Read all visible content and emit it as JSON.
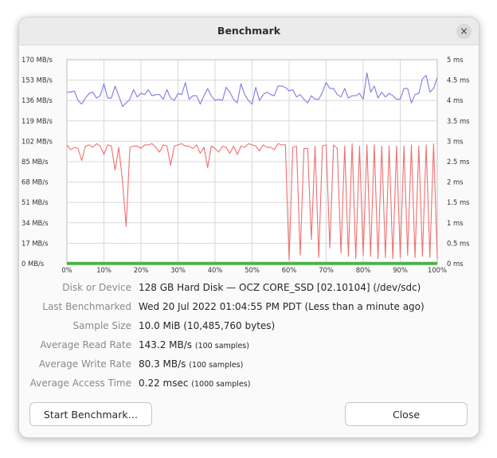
{
  "window": {
    "title": "Benchmark",
    "close_glyph": "×"
  },
  "chart_data": {
    "type": "line",
    "left_axis": {
      "unit": "MB/s",
      "ticks": [
        "170 MB/s",
        "153 MB/s",
        "136 MB/s",
        "119 MB/s",
        "102 MB/s",
        "85 MB/s",
        "68 MB/s",
        "51 MB/s",
        "34 MB/s",
        "17 MB/s",
        "0 MB/s"
      ],
      "range": [
        0,
        170
      ]
    },
    "right_axis": {
      "unit": "ms",
      "ticks": [
        "5 ms",
        "4.5 ms",
        "4 ms",
        "3.5 ms",
        "3 ms",
        "2.5 ms",
        "2 ms",
        "1.5 ms",
        "1 ms",
        "0.5 ms",
        "0 ms"
      ],
      "range": [
        0,
        5
      ]
    },
    "x_axis": {
      "ticks": [
        "0%",
        "10%",
        "20%",
        "30%",
        "40%",
        "50%",
        "60%",
        "70%",
        "80%",
        "90%",
        "100%"
      ],
      "range": [
        0,
        100
      ]
    },
    "grid": true,
    "series": [
      {
        "color": "#7b7bea",
        "x": [
          0,
          1,
          2,
          3,
          4,
          5,
          6,
          7,
          8,
          9,
          10,
          11,
          12,
          13,
          14,
          15,
          16,
          17,
          18,
          19,
          20,
          21,
          22,
          23,
          24,
          25,
          26,
          27,
          28,
          29,
          30,
          31,
          32,
          33,
          34,
          35,
          36,
          37,
          38,
          39,
          40,
          41,
          42,
          43,
          44,
          45,
          46,
          47,
          48,
          49,
          50,
          51,
          52,
          53,
          54,
          55,
          56,
          57,
          58,
          59,
          60,
          61,
          62,
          63,
          64,
          65,
          66,
          67,
          68,
          69,
          70,
          71,
          72,
          73,
          74,
          75,
          76,
          77,
          78,
          79,
          80,
          81,
          82,
          83,
          84,
          85,
          86,
          87,
          88,
          89,
          90,
          91,
          92,
          93,
          94,
          95,
          96,
          97,
          98,
          99,
          100
        ],
        "y": [
          143,
          143,
          144,
          136,
          133,
          138,
          142,
          143,
          138,
          140,
          150,
          138,
          138,
          148,
          140,
          131,
          134,
          137,
          145,
          139,
          142,
          141,
          145,
          140,
          141,
          141,
          137,
          145,
          138,
          136,
          142,
          141,
          151,
          137,
          140,
          140,
          133,
          140,
          146,
          140,
          136,
          137,
          136,
          147,
          143,
          137,
          134,
          150,
          141,
          136,
          133,
          147,
          136,
          141,
          143,
          141,
          140,
          148,
          148,
          147,
          144,
          145,
          139,
          141,
          137,
          134,
          140,
          137,
          137,
          143,
          151,
          146,
          146,
          141,
          139,
          146,
          138,
          140,
          140,
          142,
          137,
          159,
          143,
          148,
          138,
          143,
          139,
          142,
          140,
          137,
          137,
          146,
          146,
          134,
          141,
          142,
          154,
          157,
          143,
          146,
          155
        ]
      },
      {
        "color": "#f06f6f",
        "x": [
          0,
          1,
          2,
          3,
          4,
          5,
          6,
          7,
          8,
          9,
          10,
          11,
          12,
          13,
          14,
          15,
          16,
          17,
          18,
          19,
          20,
          21,
          22,
          23,
          24,
          25,
          26,
          27,
          28,
          29,
          30,
          31,
          32,
          33,
          34,
          35,
          36,
          37,
          38,
          39,
          40,
          41,
          42,
          43,
          44,
          45,
          46,
          47,
          48,
          49,
          50,
          51,
          52,
          53,
          54,
          55,
          56,
          57,
          58,
          59,
          60,
          61,
          62,
          63,
          64,
          65,
          66,
          67,
          68,
          69,
          70,
          71,
          72,
          73,
          74,
          75,
          76,
          77,
          78,
          79,
          80,
          81,
          82,
          83,
          84,
          85,
          86,
          87,
          88,
          89,
          90,
          91,
          92,
          93,
          94,
          95,
          96,
          97,
          98,
          99,
          100
        ],
        "y": [
          99,
          95,
          97,
          96,
          86,
          98,
          99,
          97,
          100,
          98,
          91,
          99,
          98,
          78,
          97,
          69,
          31,
          97,
          98,
          98,
          96,
          99,
          99,
          100,
          97,
          93,
          99,
          98,
          82,
          98,
          99,
          100,
          98,
          98,
          96,
          99,
          92,
          97,
          80,
          98,
          96,
          93,
          98,
          97,
          92,
          98,
          91,
          98,
          97,
          100,
          99,
          98,
          94,
          99,
          97,
          97,
          95,
          100,
          99,
          99,
          3,
          97,
          98,
          7,
          96,
          96,
          20,
          98,
          5,
          98,
          99,
          13,
          99,
          96,
          9,
          98,
          6,
          100,
          4,
          98,
          7,
          99,
          6,
          99,
          4,
          98,
          5,
          98,
          4,
          98,
          5,
          98,
          7,
          99,
          5,
          98,
          6,
          99,
          5,
          100,
          4
        ]
      },
      {
        "color": "#2faa2f",
        "x": [
          0,
          100
        ],
        "y": [
          0.2,
          0.2
        ]
      }
    ]
  },
  "info": {
    "disk_label": "Disk or Device",
    "disk_value": "128 GB Hard Disk — OCZ CORE_SSD [02.10104] (/dev/sdc)",
    "last_label": "Last Benchmarked",
    "last_value": "Wed 20 Jul 2022 01:04:55 PM PDT (Less than a minute ago)",
    "sample_label": "Sample Size",
    "sample_value": "10.0 MiB (10,485,760 bytes)",
    "read_label": "Average Read Rate",
    "read_value": "143.2 MB/s",
    "read_note": "(100 samples)",
    "write_label": "Average Write Rate",
    "write_value": "80.3 MB/s",
    "write_note": "(100 samples)",
    "access_label": "Average Access Time",
    "access_value": "0.22 msec",
    "access_note": "(1000 samples)"
  },
  "buttons": {
    "start": "Start Benchmark…",
    "close": "Close"
  }
}
